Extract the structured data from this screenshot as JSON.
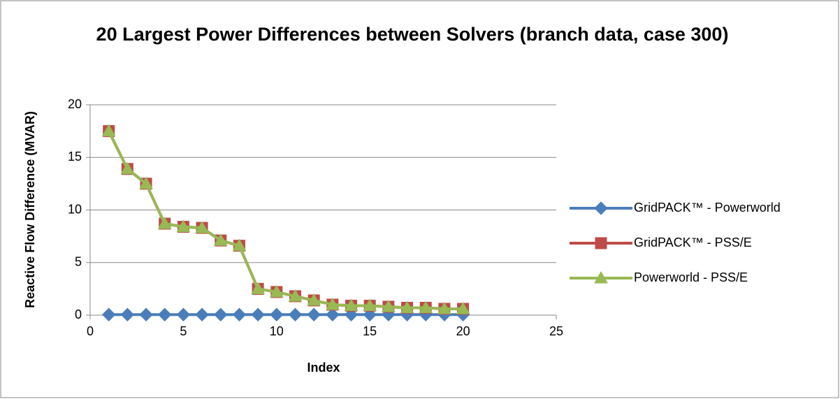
{
  "chart_data": {
    "type": "line",
    "title": "20 Largest Power Differences between Solvers (branch data, case 300)",
    "xlabel": "Index",
    "ylabel": "Reactive Flow Difference (MVAR)",
    "x": [
      1,
      2,
      3,
      4,
      5,
      6,
      7,
      8,
      9,
      10,
      11,
      12,
      13,
      14,
      15,
      16,
      17,
      18,
      19,
      20
    ],
    "series": [
      {
        "name": "GridPACK™ - Powerworld",
        "color": "#4a7ebb",
        "marker": "diamond",
        "values": [
          0.05,
          0.05,
          0.05,
          0.05,
          0.05,
          0.05,
          0.05,
          0.05,
          0.05,
          0.05,
          0.05,
          0.05,
          0.05,
          0.05,
          0.05,
          0.05,
          0.05,
          0.05,
          0.05,
          0.05
        ]
      },
      {
        "name": "GridPACK™ - PSS/E",
        "color": "#be4b48",
        "marker": "square",
        "values": [
          17.5,
          13.9,
          12.5,
          8.7,
          8.4,
          8.3,
          7.1,
          6.6,
          2.5,
          2.2,
          1.8,
          1.4,
          1.0,
          0.9,
          0.9,
          0.8,
          0.7,
          0.7,
          0.6,
          0.6
        ]
      },
      {
        "name": "Powerworld - PSS/E",
        "color": "#98b954",
        "marker": "triangle",
        "values": [
          17.5,
          13.9,
          12.5,
          8.7,
          8.4,
          8.3,
          7.1,
          6.6,
          2.5,
          2.2,
          1.8,
          1.4,
          1.0,
          0.9,
          0.9,
          0.8,
          0.7,
          0.7,
          0.6,
          0.6
        ]
      }
    ],
    "xlim": [
      0,
      25
    ],
    "xticks": [
      0,
      5,
      10,
      15,
      20,
      25
    ],
    "ylim": [
      0,
      20
    ],
    "yticks": [
      0,
      5,
      10,
      15,
      20
    ],
    "grid": true,
    "legend": "right"
  }
}
